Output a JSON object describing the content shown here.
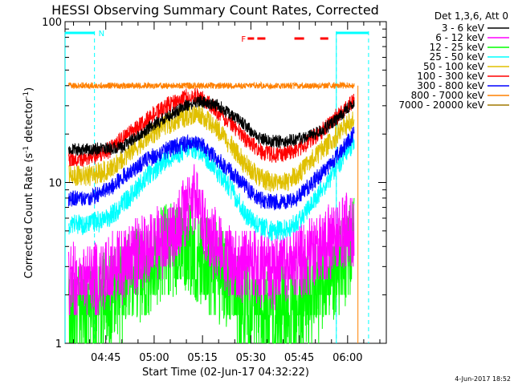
{
  "chart_data": {
    "type": "line",
    "title": "HESSI Observing Summary Count Rates, Corrected",
    "xlabel": "Start Time (02-Jun-17 04:32:22)",
    "ylabel_main": "Corrected Count Rate (s",
    "ylabel_sup1": "-1",
    "ylabel_mid": " detector",
    "ylabel_sup2": "-1",
    "ylabel_end": ")",
    "y_scale": "log",
    "ylim": [
      1,
      100
    ],
    "xlim_minutes": [
      "04:32:22",
      "06:12:00"
    ],
    "y_ticks": [
      {
        "v": 1,
        "label": "1"
      },
      {
        "v": 10,
        "label": "10"
      },
      {
        "v": 100,
        "label": "100"
      }
    ],
    "x_ticks": [
      {
        "min": 45,
        "label": "04:45"
      },
      {
        "min": 60,
        "label": "05:00"
      },
      {
        "min": 75,
        "label": "05:15"
      },
      {
        "min": 90,
        "label": "05:30"
      },
      {
        "min": 105,
        "label": "05:45"
      },
      {
        "min": 120,
        "label": "06:00"
      }
    ],
    "legend_header": "Det 1,3,6, Att 0",
    "legend_position": "right",
    "series": [
      {
        "name": "3 - 6 keV",
        "color": "#000000",
        "points": [
          [
            33.5,
            16
          ],
          [
            40,
            16
          ],
          [
            50,
            16.5
          ],
          [
            60,
            23
          ],
          [
            70,
            30
          ],
          [
            74,
            32
          ],
          [
            80,
            30
          ],
          [
            88,
            23
          ],
          [
            92,
            19
          ],
          [
            96,
            18
          ],
          [
            100,
            18
          ],
          [
            104,
            18.5
          ],
          [
            108,
            19.5
          ],
          [
            112,
            21
          ],
          [
            116,
            24
          ],
          [
            120,
            29
          ],
          [
            122,
            31
          ]
        ]
      },
      {
        "name": "6 - 12 keV",
        "color": "#ff00ff",
        "points": [
          [
            33.5,
            2.5
          ],
          [
            40,
            2.5
          ],
          [
            50,
            3.0
          ],
          [
            60,
            4.0
          ],
          [
            66,
            5.0
          ],
          [
            70,
            7.0
          ],
          [
            73,
            9.0
          ],
          [
            76,
            5.0
          ],
          [
            80,
            4.0
          ],
          [
            86,
            3.0
          ],
          [
            90,
            3.0
          ],
          [
            96,
            2.8
          ],
          [
            100,
            2.8
          ],
          [
            104,
            3.2
          ],
          [
            108,
            3.5
          ],
          [
            112,
            4.0
          ],
          [
            116,
            4.5
          ],
          [
            120,
            5.0
          ],
          [
            122,
            5.0
          ]
        ]
      },
      {
        "name": "12 - 25 keV",
        "color": "#00ff00",
        "points": [
          [
            33.5,
            1.5
          ],
          [
            40,
            1.6
          ],
          [
            48,
            2.0
          ],
          [
            56,
            2.8
          ],
          [
            62,
            3.5
          ],
          [
            66,
            4.0
          ],
          [
            70,
            4.2
          ],
          [
            74,
            3.5
          ],
          [
            78,
            3.0
          ],
          [
            84,
            2.2
          ],
          [
            88,
            1.6
          ],
          [
            94,
            1.6
          ],
          [
            100,
            1.6
          ],
          [
            106,
            1.8
          ],
          [
            112,
            2.2
          ],
          [
            116,
            2.6
          ],
          [
            120,
            3.5
          ],
          [
            122,
            4.0
          ]
        ]
      },
      {
        "name": "25 - 50 keV",
        "color": "#00ffff",
        "points": [
          [
            33.5,
            5.5
          ],
          [
            40,
            5.5
          ],
          [
            46,
            6.0
          ],
          [
            52,
            8.0
          ],
          [
            58,
            11.0
          ],
          [
            64,
            14.0
          ],
          [
            70,
            16.0
          ],
          [
            74,
            16.0
          ],
          [
            78,
            13.0
          ],
          [
            84,
            9.0
          ],
          [
            88,
            6.5
          ],
          [
            92,
            5.5
          ],
          [
            96,
            5.0
          ],
          [
            100,
            5.0
          ],
          [
            104,
            5.5
          ],
          [
            108,
            7.0
          ],
          [
            112,
            9.0
          ],
          [
            116,
            12.0
          ],
          [
            120,
            16.0
          ],
          [
            122,
            18.0
          ]
        ]
      },
      {
        "name": "50 - 100 keV",
        "color": "#e0c000",
        "points": [
          [
            33.5,
            11
          ],
          [
            40,
            11
          ],
          [
            46,
            12
          ],
          [
            52,
            15
          ],
          [
            58,
            19
          ],
          [
            64,
            23
          ],
          [
            70,
            26
          ],
          [
            74,
            27
          ],
          [
            78,
            23
          ],
          [
            84,
            17
          ],
          [
            88,
            13
          ],
          [
            92,
            11
          ],
          [
            96,
            10
          ],
          [
            100,
            10
          ],
          [
            104,
            11
          ],
          [
            108,
            13
          ],
          [
            112,
            16
          ],
          [
            116,
            19
          ],
          [
            120,
            23
          ],
          [
            122,
            25
          ]
        ]
      },
      {
        "name": "100 - 300 keV",
        "color": "#ff0000",
        "points": [
          [
            33.5,
            14
          ],
          [
            40,
            14
          ],
          [
            46,
            16
          ],
          [
            52,
            20
          ],
          [
            58,
            25
          ],
          [
            64,
            30
          ],
          [
            70,
            34
          ],
          [
            74,
            34
          ],
          [
            78,
            30
          ],
          [
            84,
            23
          ],
          [
            88,
            19
          ],
          [
            92,
            16
          ],
          [
            96,
            15
          ],
          [
            100,
            15
          ],
          [
            104,
            16
          ],
          [
            108,
            18
          ],
          [
            112,
            21
          ],
          [
            116,
            25
          ],
          [
            120,
            30
          ],
          [
            122,
            32
          ]
        ]
      },
      {
        "name": "300 - 800 keV",
        "color": "#0000ff",
        "points": [
          [
            33.5,
            8.0
          ],
          [
            40,
            8.0
          ],
          [
            46,
            9.0
          ],
          [
            52,
            11.5
          ],
          [
            58,
            14.0
          ],
          [
            64,
            16.0
          ],
          [
            70,
            17.5
          ],
          [
            74,
            17.5
          ],
          [
            78,
            15.0
          ],
          [
            84,
            11.5
          ],
          [
            88,
            9.5
          ],
          [
            92,
            8.0
          ],
          [
            96,
            7.5
          ],
          [
            100,
            7.5
          ],
          [
            104,
            8.0
          ],
          [
            108,
            9.5
          ],
          [
            112,
            11.5
          ],
          [
            116,
            14.0
          ],
          [
            120,
            18.0
          ],
          [
            122,
            20.0
          ]
        ]
      },
      {
        "name": "800 - 7000 keV",
        "color": "#ff8000",
        "points": [
          [
            33.5,
            40
          ],
          [
            40,
            40
          ],
          [
            50,
            40
          ],
          [
            60,
            40
          ],
          [
            70,
            40
          ],
          [
            80,
            40
          ],
          [
            90,
            40
          ],
          [
            100,
            40
          ],
          [
            110,
            40
          ],
          [
            120,
            40
          ],
          [
            122,
            40
          ]
        ]
      },
      {
        "name": "7000 - 20000 keV",
        "color": "#a07800",
        "points": []
      }
    ],
    "flags": {
      "N_label": "N",
      "F_label": "F",
      "N_intervals_min": [
        [
          32.4,
          41.5
        ],
        [
          116.5,
          126.5
        ]
      ],
      "F_segments_min": [
        [
          89,
          91
        ],
        [
          92,
          94.5
        ],
        [
          103.5,
          106.5
        ],
        [
          111.5,
          114
        ]
      ]
    },
    "dashed_markers_min": [
      41.5,
      116.5,
      126.5
    ]
  },
  "footer_date": "4-Jun-2017 18:52"
}
